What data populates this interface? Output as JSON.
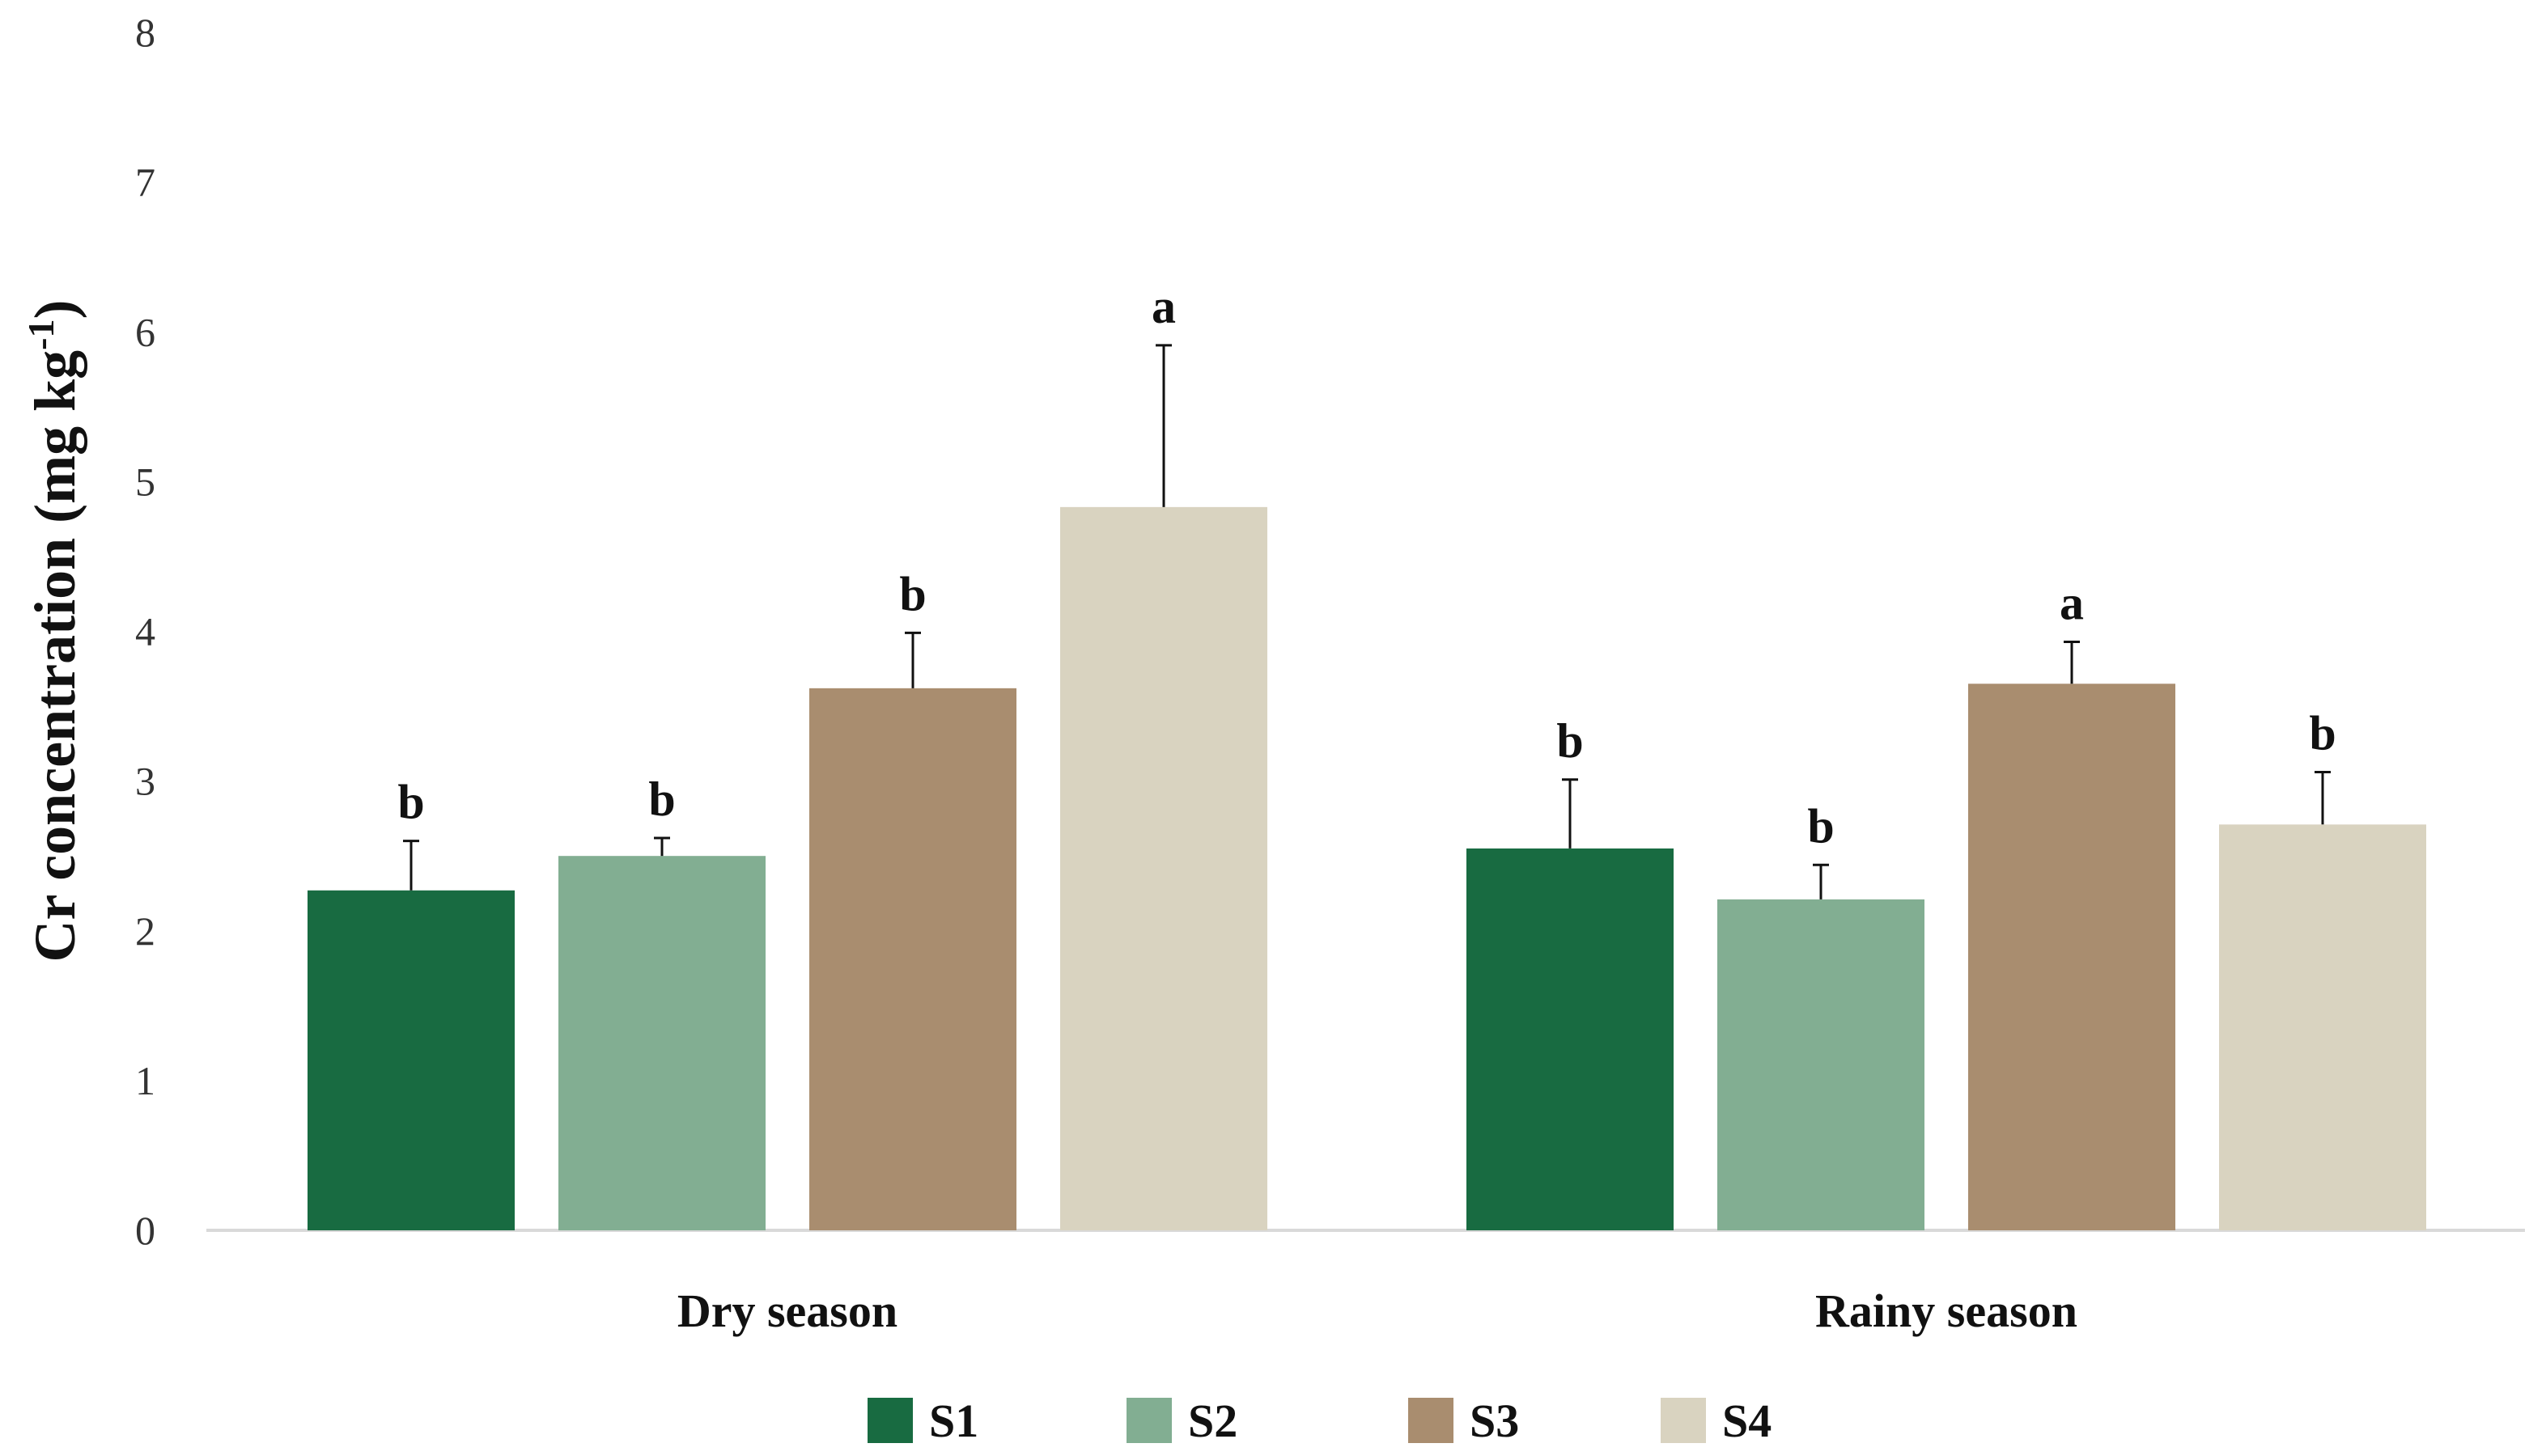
{
  "chart_data": {
    "type": "bar",
    "title": "",
    "xlabel": "",
    "ylabel": "Cr concentration (mg kg",
    "ylabel_superscript": "-1",
    "ylabel_suffix": ")",
    "ylim": [
      0,
      8
    ],
    "yticks": [
      "0",
      "1",
      "2",
      "3",
      "4",
      "5",
      "6",
      "7",
      "8"
    ],
    "grid": false,
    "legend_position": "bottom-center",
    "categories": [
      "Dry season",
      "Rainy season"
    ],
    "series": [
      {
        "name": "S1",
        "color": "#186b41",
        "values": [
          2.27,
          2.55
        ],
        "errors": [
          0.33,
          0.46
        ],
        "letters": [
          "b",
          "b"
        ]
      },
      {
        "name": "S2",
        "color": "#82ae92",
        "values": [
          2.5,
          2.21
        ],
        "errors": [
          0.12,
          0.23
        ],
        "letters": [
          "b",
          "b"
        ]
      },
      {
        "name": "S3",
        "color": "#a98d6f",
        "values": [
          3.62,
          3.65
        ],
        "errors": [
          0.37,
          0.28
        ],
        "letters": [
          "b",
          "a"
        ]
      },
      {
        "name": "S4",
        "color": "#d9d3c0",
        "values": [
          4.83,
          2.71
        ],
        "errors": [
          1.08,
          0.35
        ],
        "letters": [
          "a",
          "b"
        ]
      }
    ]
  }
}
